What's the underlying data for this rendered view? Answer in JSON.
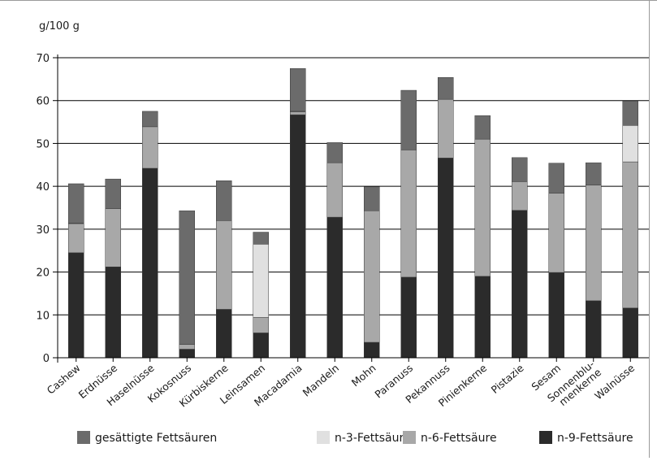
{
  "chart_data": {
    "type": "bar",
    "stacked": true,
    "ylabel": "g/100 g",
    "ylim": [
      0,
      70
    ],
    "yticks": [
      0,
      10,
      20,
      30,
      40,
      50,
      60,
      70
    ],
    "grid": true,
    "legend_position": "bottom",
    "categories": [
      "Cashew",
      "Erdnüsse",
      "Haselnüsse",
      "Kokosnuss",
      "Kürbiskerne",
      "Leinsamen",
      "Macadamia",
      "Mandeln",
      "Mohn",
      "Paranuss",
      "Pekannuss",
      "Pinienkerne",
      "Pistazie",
      "Sesam",
      "Sonnenblu-\nmenkerne",
      "Walnüsse"
    ],
    "series": [
      {
        "name": "n-9-Fettsäure",
        "color": "#2b2b2b",
        "values": [
          24.5,
          21.2,
          44.2,
          2.0,
          11.3,
          5.8,
          56.7,
          32.8,
          3.6,
          18.8,
          46.6,
          19.0,
          34.4,
          19.9,
          13.3,
          11.6
        ]
      },
      {
        "name": "n-6-Fettsäure",
        "color": "#a8a8a8",
        "values": [
          6.8,
          13.6,
          9.7,
          1.1,
          20.7,
          3.6,
          0.7,
          12.7,
          30.7,
          29.7,
          13.7,
          32.0,
          6.7,
          18.5,
          27.0,
          34.1
        ]
      },
      {
        "name": "n-3-Fettsäure",
        "color": "#e0e0e0",
        "values": [
          0.1,
          0.0,
          0.0,
          0.0,
          0.0,
          17.1,
          0.1,
          0.0,
          0.0,
          0.0,
          0.0,
          0.0,
          0.0,
          0.0,
          0.0,
          8.5
        ]
      },
      {
        "name": "gesättigte Fettsäuren",
        "color": "#6b6b6b",
        "values": [
          9.2,
          6.9,
          3.6,
          31.2,
          9.3,
          2.8,
          10.0,
          4.7,
          5.6,
          13.9,
          5.1,
          5.5,
          5.6,
          7.0,
          5.2,
          5.7
        ]
      }
    ],
    "legend": [
      {
        "name": "gesättigte Fettsäuren",
        "color": "#6b6b6b"
      },
      {
        "name": "n-3-Fettsäure",
        "color": "#e0e0e0"
      },
      {
        "name": "n-6-Fettsäure",
        "color": "#a8a8a8"
      },
      {
        "name": "n-9-Fettsäure",
        "color": "#2b2b2b"
      }
    ]
  }
}
